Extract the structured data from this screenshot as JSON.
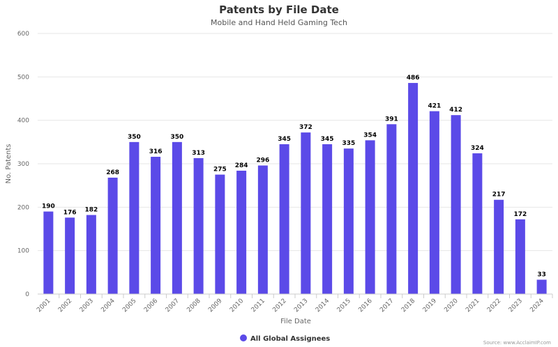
{
  "chart_data": {
    "type": "bar",
    "title": "Patents by File Date",
    "subtitle": "Mobile and Hand Held Gaming Tech",
    "xlabel": "File Date",
    "ylabel": "No. Patents",
    "ylim": [
      0,
      600
    ],
    "yticks": [
      0,
      100,
      200,
      300,
      400,
      500,
      600
    ],
    "grid": true,
    "legend_position": "bottom-center",
    "categories": [
      "2001",
      "2002",
      "2003",
      "2004",
      "2005",
      "2006",
      "2007",
      "2008",
      "2009",
      "2010",
      "2011",
      "2012",
      "2013",
      "2014",
      "2015",
      "2016",
      "2017",
      "2018",
      "2019",
      "2020",
      "2021",
      "2022",
      "2023",
      "2024"
    ],
    "series": [
      {
        "name": "All Global Assignees",
        "color": "#5b4ae8",
        "values": [
          190,
          176,
          182,
          268,
          350,
          316,
          350,
          313,
          275,
          284,
          296,
          345,
          372,
          345,
          335,
          354,
          391,
          486,
          421,
          412,
          324,
          217,
          172,
          33
        ]
      }
    ]
  },
  "source": "Source: www.AcclaimIP.com"
}
